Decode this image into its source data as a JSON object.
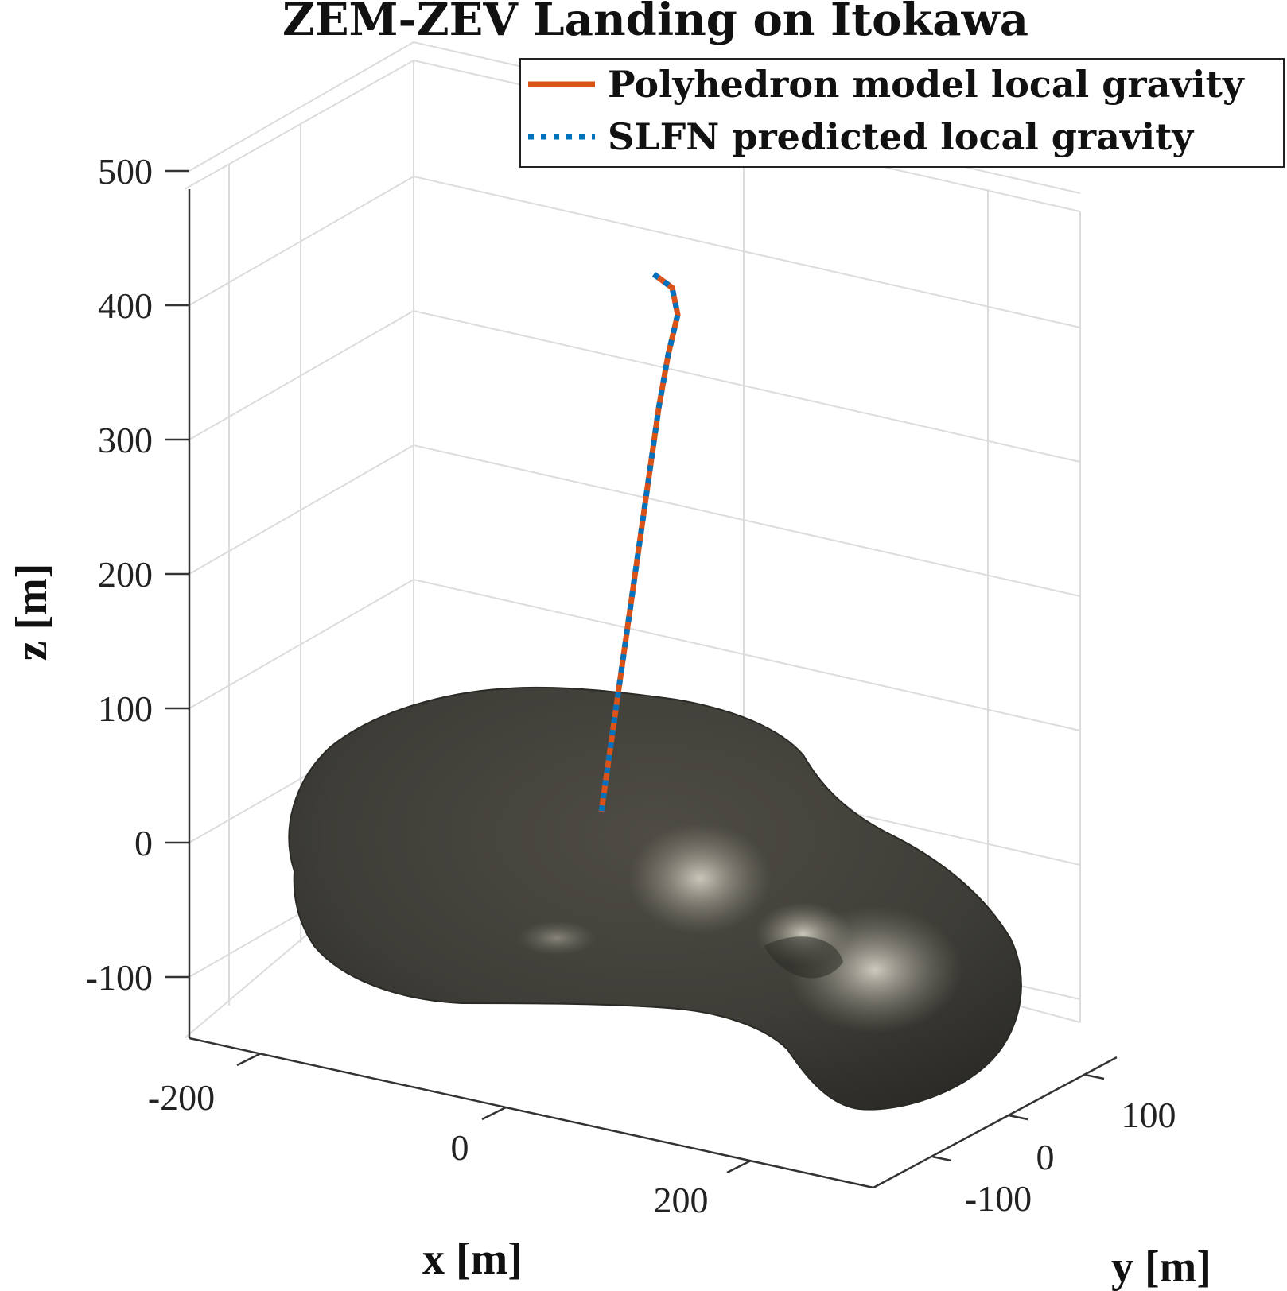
{
  "chart_data": {
    "type": "line",
    "title": "ZEM-ZEV Landing on Itokawa",
    "xlabel": "x [m]",
    "ylabel": "y [m]",
    "zlabel": "z [m]",
    "x_ticks": [
      "-200",
      "0",
      "200"
    ],
    "y_ticks": [
      "-100",
      "0",
      "100"
    ],
    "z_ticks": [
      "500",
      "400",
      "300",
      "200",
      "100",
      "0",
      "-100"
    ],
    "zlim": [
      -120,
      520
    ],
    "grid": true,
    "legend_position": "top-right",
    "series": [
      {
        "name": "Polyhedron model local gravity",
        "style": "solid",
        "color": "#d95319",
        "z": [
          500,
          490,
          470,
          440,
          400,
          350,
          300,
          250,
          200,
          150,
          100
        ]
      },
      {
        "name": "SLFN predicted local gravity",
        "style": "dotted",
        "color": "#0072bd",
        "z": [
          500,
          490,
          470,
          440,
          400,
          350,
          300,
          250,
          200,
          150,
          100
        ]
      }
    ],
    "surface": {
      "label": "Itokawa",
      "color": "#4a4840"
    }
  }
}
